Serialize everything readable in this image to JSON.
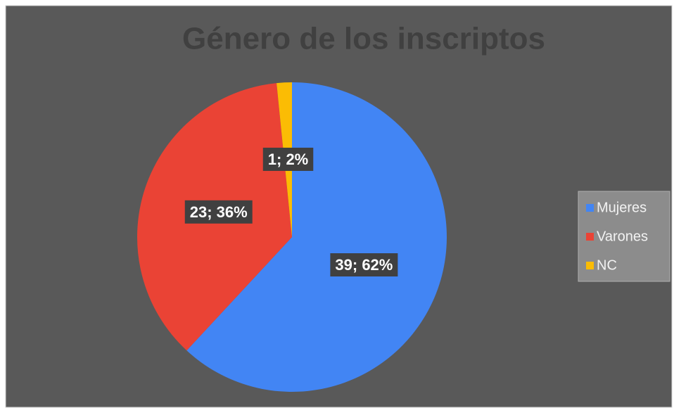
{
  "chart_data": {
    "type": "pie",
    "title": "Género de los inscriptos",
    "categories": [
      "Mujeres",
      "Varones",
      "NC"
    ],
    "values": [
      39,
      23,
      1
    ],
    "value_labels": [
      "39; 62%",
      "23; 36%",
      "1; 2%"
    ],
    "colors": [
      "#4285f4",
      "#ea4335",
      "#fbbc04"
    ],
    "legend": "right"
  }
}
